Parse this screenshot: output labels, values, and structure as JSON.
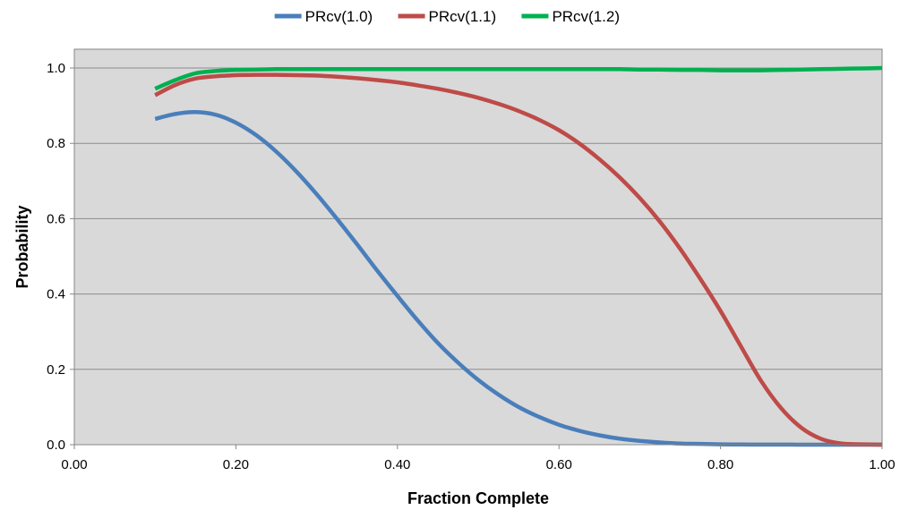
{
  "chart_data": {
    "type": "line",
    "title": "",
    "xlabel": "Fraction Complete",
    "ylabel": "Probability",
    "xlim": [
      0,
      1
    ],
    "ylim": [
      0,
      1.05
    ],
    "grid": "horizontal",
    "legend_position": "top",
    "plot_background": "#d9d9d9",
    "x_ticks": [
      0.0,
      0.2,
      0.4,
      0.6,
      0.8,
      1.0
    ],
    "x_tick_labels": [
      "0.00",
      "0.20",
      "0.40",
      "0.60",
      "0.80",
      "1.00"
    ],
    "y_ticks": [
      0.0,
      0.2,
      0.4,
      0.6,
      0.8,
      1.0
    ],
    "y_tick_labels": [
      "0.0",
      "0.2",
      "0.4",
      "0.6",
      "0.8",
      "1.0"
    ],
    "x": [
      0.1,
      0.125,
      0.15,
      0.175,
      0.2,
      0.225,
      0.25,
      0.275,
      0.3,
      0.325,
      0.35,
      0.375,
      0.4,
      0.425,
      0.45,
      0.475,
      0.5,
      0.525,
      0.55,
      0.575,
      0.6,
      0.625,
      0.65,
      0.675,
      0.7,
      0.725,
      0.75,
      0.775,
      0.8,
      0.825,
      0.85,
      0.875,
      0.9,
      0.925,
      0.95,
      0.975,
      1.0
    ],
    "series": [
      {
        "name": "PRcv(1.0)",
        "color": "#4a7ebb",
        "values": [
          0.865,
          0.878,
          0.883,
          0.876,
          0.855,
          0.822,
          0.778,
          0.725,
          0.665,
          0.6,
          0.532,
          0.462,
          0.395,
          0.33,
          0.27,
          0.218,
          0.172,
          0.133,
          0.1,
          0.074,
          0.053,
          0.037,
          0.025,
          0.016,
          0.01,
          0.006,
          0.003,
          0.002,
          0.001,
          0.0005,
          0.0003,
          0.0002,
          0.0001,
          0.0,
          0.0,
          0.0,
          0.0
        ]
      },
      {
        "name": "PRcv(1.1)",
        "color": "#be4b48",
        "values": [
          0.928,
          0.955,
          0.972,
          0.978,
          0.981,
          0.982,
          0.982,
          0.981,
          0.98,
          0.977,
          0.973,
          0.968,
          0.962,
          0.954,
          0.945,
          0.934,
          0.921,
          0.905,
          0.886,
          0.863,
          0.835,
          0.8,
          0.758,
          0.71,
          0.655,
          0.592,
          0.52,
          0.44,
          0.355,
          0.262,
          0.17,
          0.097,
          0.045,
          0.015,
          0.003,
          0.001,
          0.0
        ]
      },
      {
        "name": "PRcv(1.2)",
        "color": "#00b050",
        "values": [
          0.945,
          0.968,
          0.986,
          0.992,
          0.995,
          0.996,
          0.997,
          0.997,
          0.997,
          0.997,
          0.997,
          0.997,
          0.997,
          0.997,
          0.997,
          0.997,
          0.997,
          0.997,
          0.997,
          0.997,
          0.997,
          0.997,
          0.997,
          0.997,
          0.996,
          0.996,
          0.995,
          0.995,
          0.994,
          0.994,
          0.994,
          0.995,
          0.996,
          0.997,
          0.998,
          0.999,
          1.0
        ]
      }
    ]
  }
}
